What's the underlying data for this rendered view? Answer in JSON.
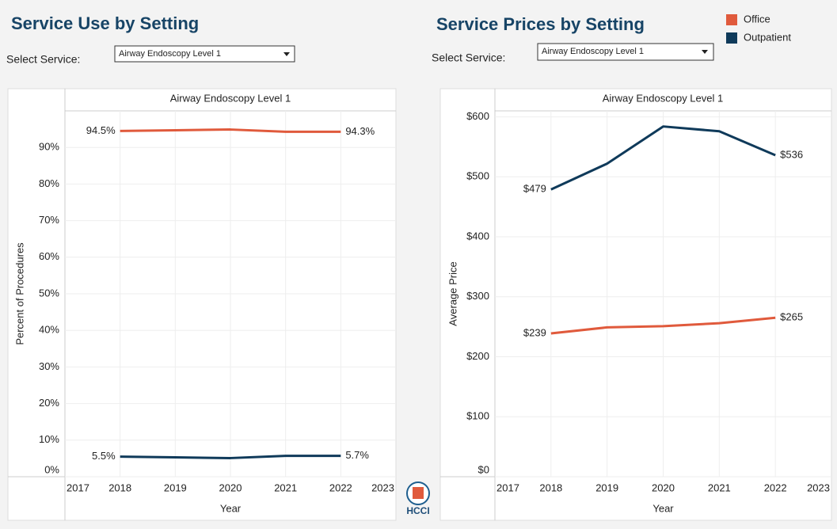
{
  "logo": "HCCI",
  "chart_data": [
    {
      "type": "line",
      "title": "Service Use by Setting",
      "select_label": "Select Service:",
      "service": "Airway Endoscopy Level 1",
      "subtitle": "Airway Endoscopy Level 1",
      "x_label": "Year",
      "y_label": "Percent of Procedures",
      "x": [
        2018,
        2019,
        2020,
        2021,
        2022
      ],
      "xlim": [
        2017,
        2023
      ],
      "xticks": [
        2017,
        2018,
        2019,
        2020,
        2021,
        2022,
        2023
      ],
      "ylim": [
        0,
        100
      ],
      "yticks": [
        {
          "value": 0,
          "label": "0%"
        },
        {
          "value": 10,
          "label": "10%"
        },
        {
          "value": 20,
          "label": "20%"
        },
        {
          "value": 30,
          "label": "30%"
        },
        {
          "value": 40,
          "label": "40%"
        },
        {
          "value": 50,
          "label": "50%"
        },
        {
          "value": 60,
          "label": "60%"
        },
        {
          "value": 70,
          "label": "70%"
        },
        {
          "value": 80,
          "label": "80%"
        },
        {
          "value": 90,
          "label": "90%"
        }
      ],
      "grid": true,
      "series": [
        {
          "name": "Office",
          "color": "#e05a3c",
          "values": [
            94.5,
            94.7,
            94.9,
            94.3,
            94.3
          ],
          "value_labels": [
            "94.5%",
            null,
            null,
            null,
            "94.3%"
          ]
        },
        {
          "name": "Outpatient",
          "color": "#0f3a5a",
          "values": [
            5.5,
            5.3,
            5.1,
            5.7,
            5.7
          ],
          "value_labels": [
            "5.5%",
            null,
            null,
            null,
            "5.7%"
          ]
        }
      ]
    },
    {
      "type": "line",
      "title": "Service Prices by Setting",
      "select_label": "Select Service:",
      "service": "Airway Endoscopy Level 1",
      "subtitle": "Airway Endoscopy Level 1",
      "x_label": "Year",
      "y_label": "Average Price",
      "x": [
        2018,
        2019,
        2020,
        2021,
        2022
      ],
      "xlim": [
        2017,
        2023
      ],
      "xticks": [
        2017,
        2018,
        2019,
        2020,
        2021,
        2022,
        2023
      ],
      "ylim": [
        0,
        610
      ],
      "yticks": [
        {
          "value": 0,
          "label": "$0"
        },
        {
          "value": 100,
          "label": "$100"
        },
        {
          "value": 200,
          "label": "$200"
        },
        {
          "value": 300,
          "label": "$300"
        },
        {
          "value": 400,
          "label": "$400"
        },
        {
          "value": 500,
          "label": "$500"
        },
        {
          "value": 600,
          "label": "$600"
        }
      ],
      "grid": true,
      "legend": "top-right",
      "series": [
        {
          "name": "Office",
          "color": "#e05a3c",
          "values": [
            239,
            249,
            251,
            256,
            265
          ],
          "value_labels": [
            "$239",
            null,
            null,
            null,
            "$265"
          ]
        },
        {
          "name": "Outpatient",
          "color": "#0f3a5a",
          "values": [
            479,
            522,
            584,
            576,
            536
          ],
          "value_labels": [
            "$479",
            null,
            null,
            null,
            "$536"
          ]
        }
      ]
    }
  ]
}
